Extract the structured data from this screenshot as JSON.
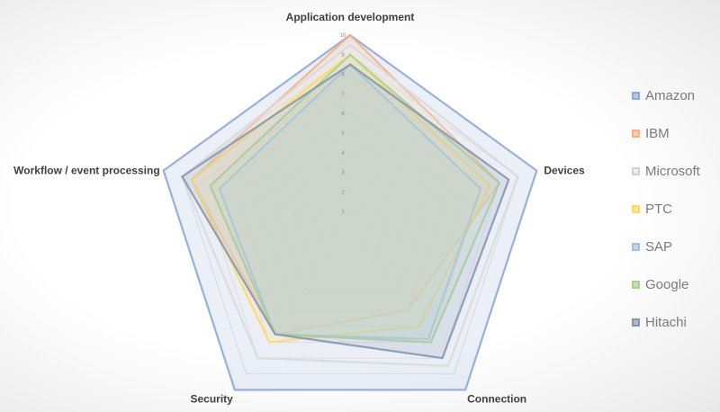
{
  "chart_data": {
    "type": "radar",
    "categories": [
      "Application development",
      "Devices",
      "Connection",
      "Security",
      "Workflow / event processing"
    ],
    "rmin": 0,
    "rmax": 10,
    "ticks": [
      "1",
      "2",
      "3",
      "4",
      "5",
      "6",
      "7",
      "8",
      "9",
      "10"
    ],
    "grid": true,
    "legend_position": "right",
    "series": [
      {
        "name": "Amazon",
        "values": [
          10,
          10,
          10,
          10,
          10
        ],
        "color": "#8faadc",
        "fill": "#b4c7e7"
      },
      {
        "name": "IBM",
        "values": [
          10,
          8,
          5,
          6.5,
          8.5
        ],
        "color": "#f4b183",
        "fill": "#f8cbad"
      },
      {
        "name": "Microsoft",
        "values": [
          9.5,
          9,
          8.5,
          8,
          9
        ],
        "color": "#d9d9d9",
        "fill": "#ededed"
      },
      {
        "name": "PTC",
        "values": [
          9,
          7.5,
          6,
          7,
          8.5
        ],
        "color": "#ffd966",
        "fill": "#ffe699"
      },
      {
        "name": "SAP",
        "values": [
          8.5,
          7,
          6.8,
          6.5,
          7
        ],
        "color": "#9dc3e6",
        "fill": "#bdd7ee"
      },
      {
        "name": "Google",
        "values": [
          9,
          8,
          7,
          6.5,
          7.5
        ],
        "color": "#a9d18e",
        "fill": "#c5e0b4"
      },
      {
        "name": "Hitachi",
        "values": [
          8.5,
          8.5,
          8,
          6.5,
          9
        ],
        "color": "#8497b0",
        "fill": "#adb9ca"
      }
    ],
    "legend_colors": {
      "Amazon": "#8faadc",
      "IBM": "#f4b183",
      "Microsoft": "#d0d0d0",
      "PTC": "#ffd966",
      "SAP": "#9dc3e6",
      "Google": "#a9d18e",
      "Hitachi": "#8497b0"
    }
  }
}
